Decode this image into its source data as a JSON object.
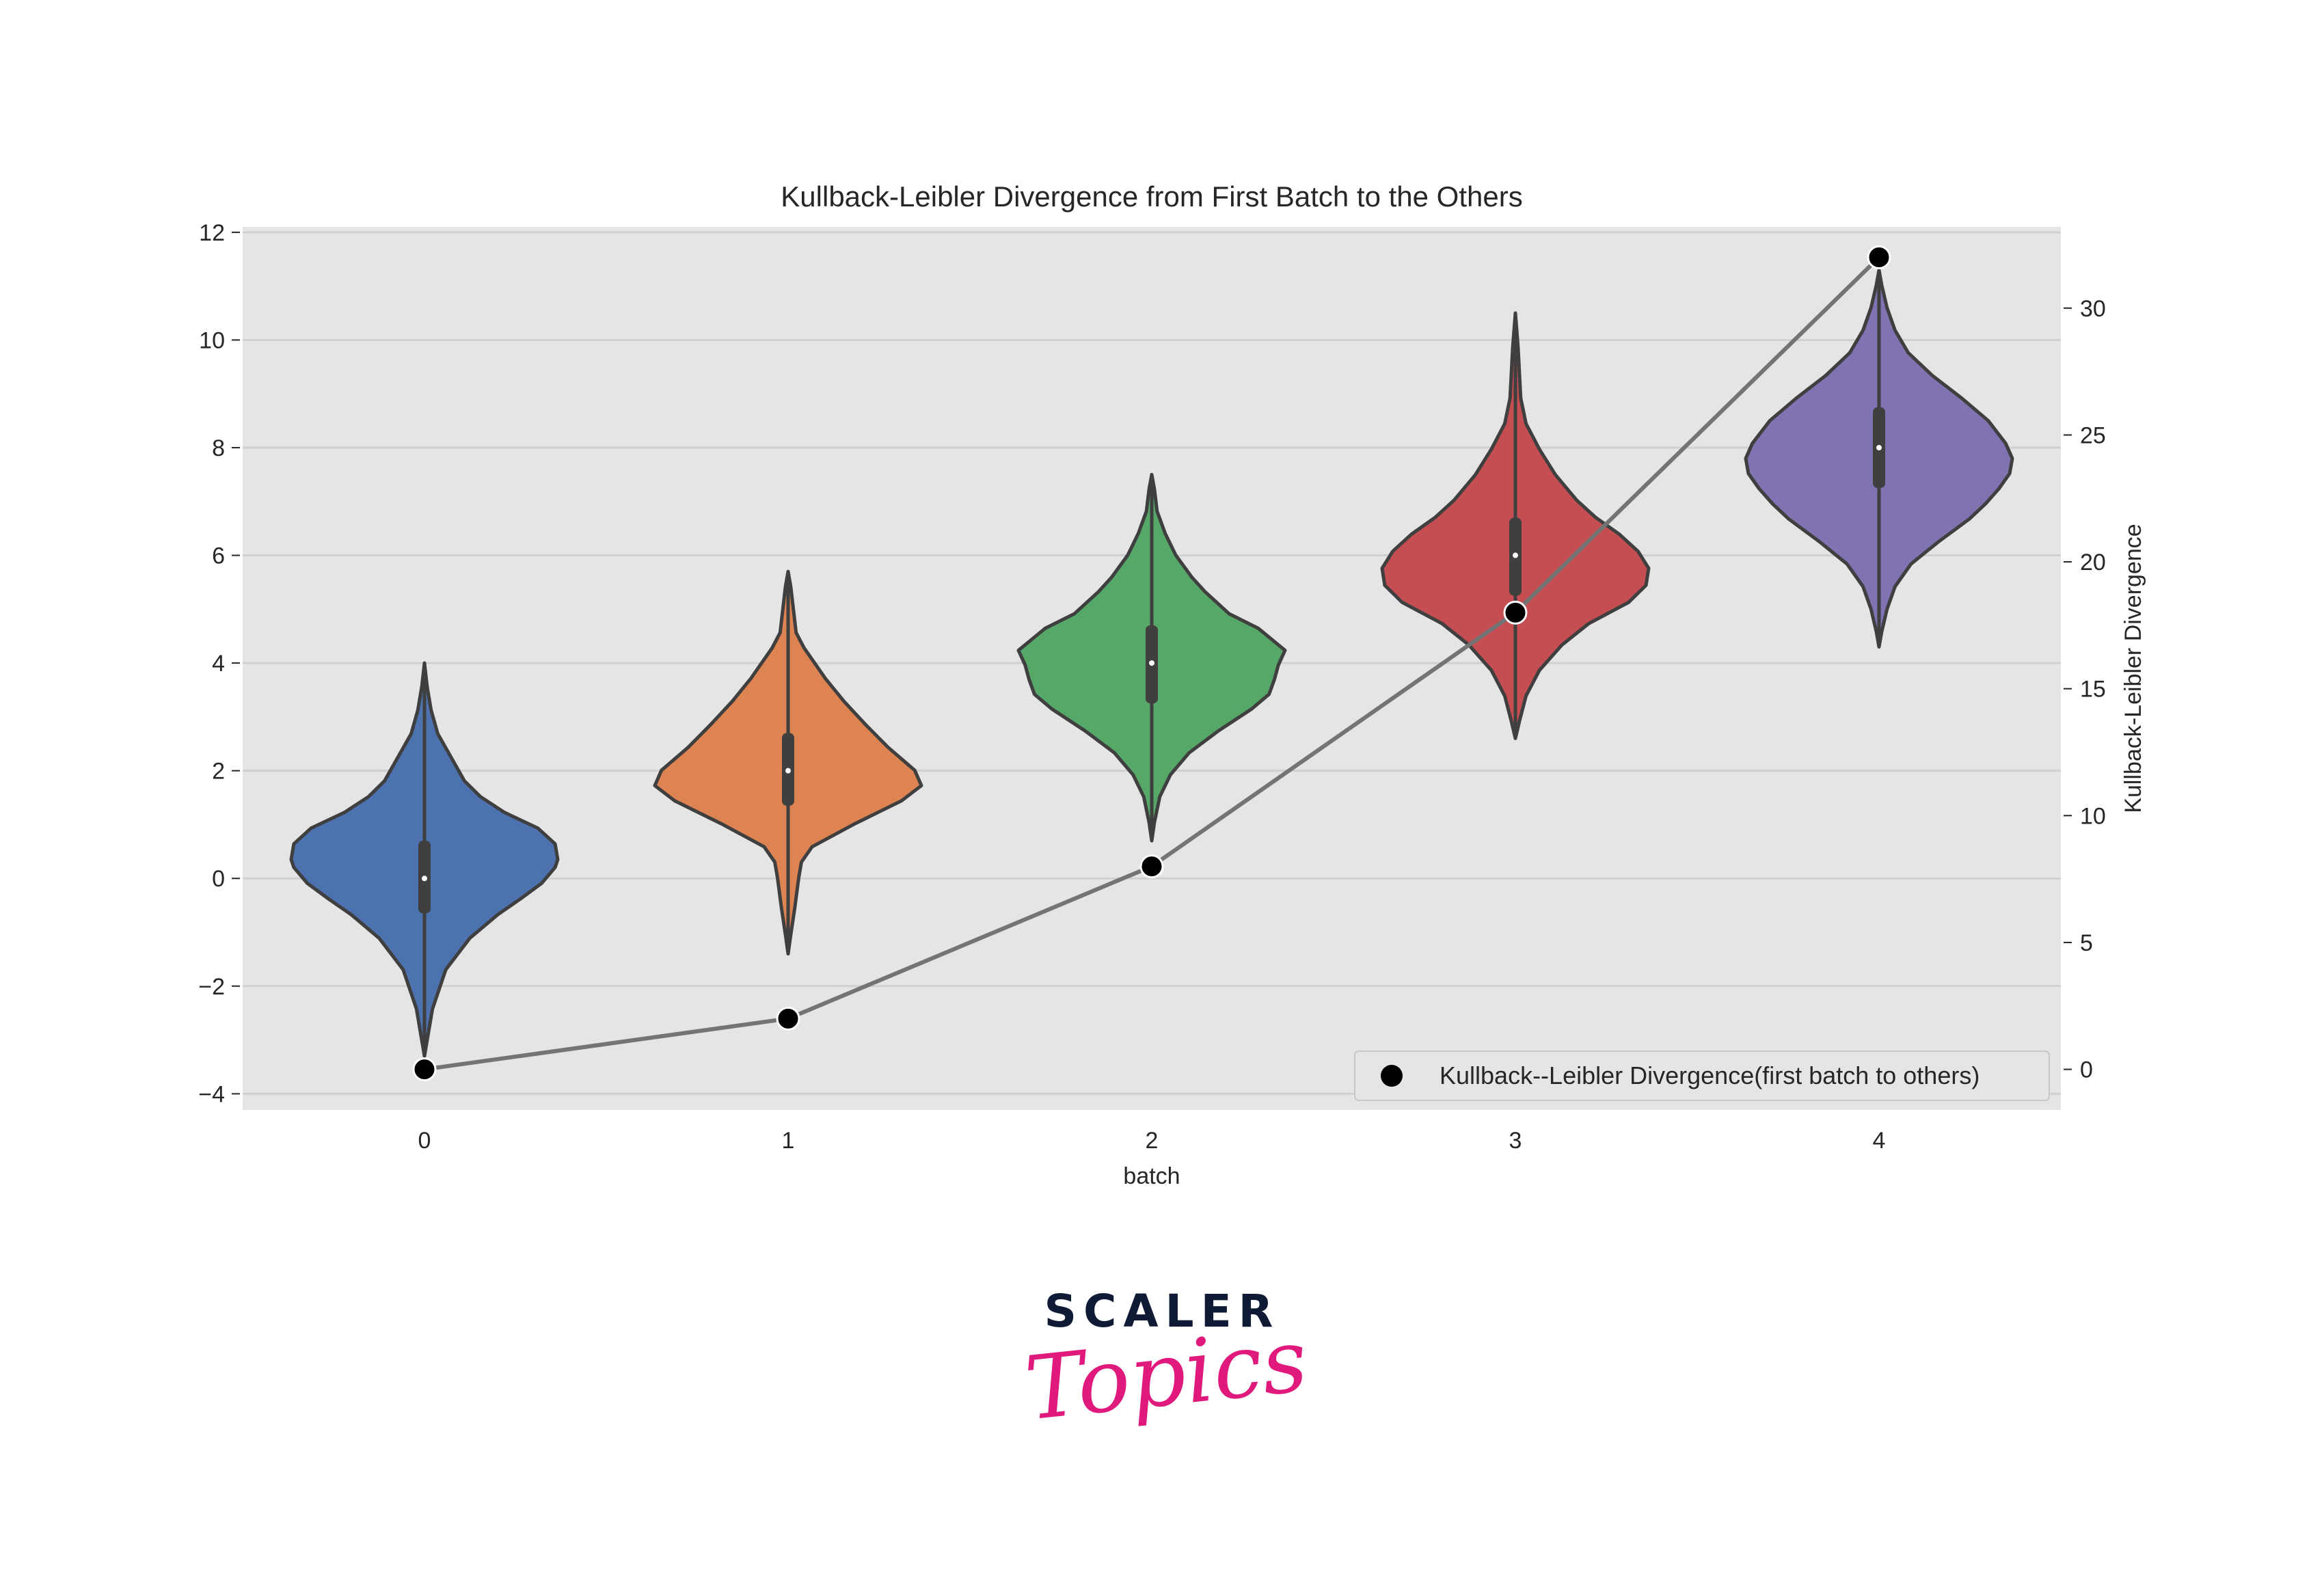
{
  "chart_data": {
    "type": "violin",
    "title": "Kullback-Leibler Divergence from First Batch to the Others",
    "xlabel": "batch",
    "ylabel_left": "",
    "ylabel_right": "Kullback-Leibler Divergence",
    "categories": [
      "0",
      "1",
      "2",
      "3",
      "4"
    ],
    "ylim_left": [
      -4.3,
      12.1
    ],
    "ylim_right": [
      -1.6,
      33.2
    ],
    "yticks_left": [
      -4,
      -2,
      0,
      2,
      4,
      6,
      8,
      10,
      12
    ],
    "yticks_left_labels": [
      "−4",
      "−2",
      "0",
      "2",
      "4",
      "6",
      "8",
      "10",
      "12"
    ],
    "yticks_right": [
      0,
      5,
      10,
      15,
      20,
      25,
      30
    ],
    "yticks_right_labels": [
      "0",
      "5",
      "10",
      "15",
      "20",
      "25",
      "30"
    ],
    "grid": true,
    "violins": [
      {
        "category": "0",
        "color": "#4c72b0",
        "min": -3.3,
        "max": 4.0,
        "q1": -0.65,
        "median": 0.0,
        "q3": 0.7
      },
      {
        "category": "1",
        "color": "#dd8452",
        "min": -1.4,
        "max": 5.7,
        "q1": 1.35,
        "median": 2.0,
        "q3": 2.7
      },
      {
        "category": "2",
        "color": "#55a868",
        "min": 0.7,
        "max": 7.5,
        "q1": 3.25,
        "median": 4.0,
        "q3": 4.7
      },
      {
        "category": "3",
        "color": "#c44e52",
        "min": 2.6,
        "max": 10.5,
        "q1": 5.25,
        "median": 6.0,
        "q3": 6.7
      },
      {
        "category": "4",
        "color": "#8172b2",
        "min": 4.3,
        "max": 11.3,
        "q1": 7.25,
        "median": 8.0,
        "q3": 8.75
      }
    ],
    "series": [
      {
        "name": "Kullback--Leibler Divergence(first batch to others)",
        "axis": "right",
        "x": [
          "0",
          "1",
          "2",
          "3",
          "4"
        ],
        "values": [
          0,
          2,
          8,
          18,
          32
        ]
      }
    ],
    "legend": {
      "label": "Kullback--Leibler Divergence(first batch to others)",
      "position": "lower-right"
    }
  },
  "logo": {
    "top_text": "SCALER",
    "bottom_text": "Topics"
  },
  "colors": {
    "background": "#e5e5e5",
    "grid": "#d0d0d0",
    "line": "#747474",
    "marker": "#000000",
    "logo_dark": "#0f1b34",
    "logo_pink": "#e0197d"
  }
}
